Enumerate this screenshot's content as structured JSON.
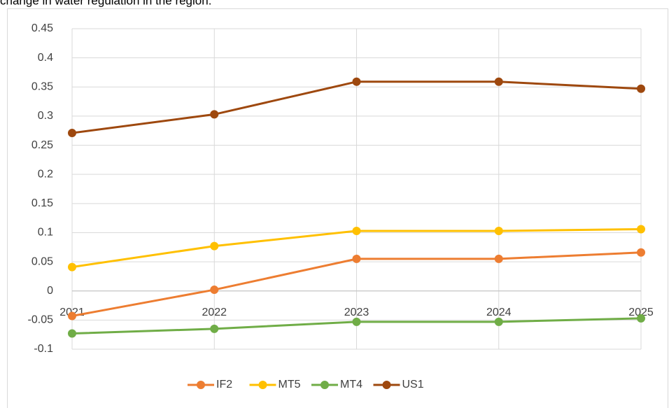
{
  "caption": "change in water regulation in the region.",
  "chart_data": {
    "type": "line",
    "categories": [
      "2021",
      "2022",
      "2023",
      "2024",
      "2025"
    ],
    "series": [
      {
        "name": "IF2",
        "color": "#ed7d31",
        "values": [
          -0.043,
          0.002,
          0.055,
          0.055,
          0.066
        ]
      },
      {
        "name": "MT5",
        "color": "#ffc000",
        "values": [
          0.041,
          0.077,
          0.103,
          0.103,
          0.106
        ]
      },
      {
        "name": "MT4",
        "color": "#70ad47",
        "values": [
          -0.073,
          -0.065,
          -0.053,
          -0.053,
          -0.047
        ]
      },
      {
        "name": "US1",
        "color": "#9e480e",
        "values": [
          0.271,
          0.303,
          0.359,
          0.359,
          0.347
        ]
      }
    ],
    "ylim": [
      -0.1,
      0.45
    ],
    "yticks": [
      0.45,
      0.4,
      0.35,
      0.3,
      0.25,
      0.2,
      0.15,
      0.1,
      0.05,
      0,
      -0.05,
      -0.1
    ],
    "grid": true,
    "legend": "bottom"
  }
}
